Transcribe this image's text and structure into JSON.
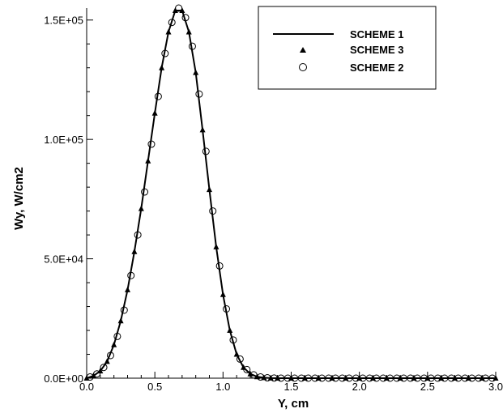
{
  "chart_data": {
    "type": "line",
    "xlabel": "Y, cm",
    "ylabel": "Wy, W/cm2",
    "xlim": [
      0,
      3.0
    ],
    "ylim": [
      0,
      155000
    ],
    "x_ticks": [
      0,
      0.5,
      1.0,
      1.5,
      2.0,
      2.5,
      3.0
    ],
    "x_tick_labels": [
      "0.0",
      "0.5",
      "1.0",
      "1.5",
      "2.0",
      "2.5",
      "3.0"
    ],
    "y_ticks": [
      0,
      50000,
      100000,
      150000
    ],
    "y_tick_labels": [
      "0.0E+00",
      "5.0E+04",
      "1.0E+05",
      "1.5E+05"
    ],
    "grid": false,
    "legend_position": "top-right",
    "series": [
      {
        "name": "SCHEME 1",
        "style": "line",
        "color": "#000000",
        "x": [
          0.0,
          0.05,
          0.1,
          0.15,
          0.2,
          0.25,
          0.3,
          0.35,
          0.4,
          0.45,
          0.5,
          0.55,
          0.6,
          0.65,
          0.7,
          0.75,
          0.8,
          0.85,
          0.9,
          0.95,
          1.0,
          1.05,
          1.1,
          1.15,
          1.2,
          1.25,
          1.3,
          1.35,
          1.4,
          1.5,
          1.6,
          1.8,
          2.0,
          2.2,
          2.4,
          2.6,
          2.8,
          3.0
        ],
        "y": [
          0,
          1000,
          3000,
          7000,
          14000,
          24000,
          37000,
          53000,
          71000,
          91000,
          111000,
          130000,
          145000,
          154000,
          154000,
          145000,
          128000,
          104000,
          79000,
          55000,
          35000,
          20000,
          10000,
          4500,
          1800,
          600,
          200,
          60,
          20,
          0,
          0,
          0,
          0,
          0,
          0,
          0,
          0,
          0
        ]
      },
      {
        "name": "SCHEME 3",
        "style": "triangle",
        "color": "#000000",
        "x": [
          0.0,
          0.05,
          0.1,
          0.15,
          0.2,
          0.25,
          0.3,
          0.35,
          0.4,
          0.45,
          0.5,
          0.55,
          0.6,
          0.65,
          0.7,
          0.75,
          0.8,
          0.85,
          0.9,
          0.95,
          1.0,
          1.05,
          1.1,
          1.15,
          1.2,
          1.25,
          1.3,
          1.35,
          1.4,
          1.5,
          1.6,
          1.7,
          1.8,
          1.9,
          2.0,
          2.1,
          2.2,
          2.3,
          2.4,
          2.5,
          2.6,
          2.7,
          2.8,
          2.9,
          3.0
        ],
        "y": [
          0,
          1000,
          3000,
          7000,
          14000,
          24000,
          37000,
          53000,
          71000,
          91000,
          111000,
          130000,
          145000,
          154000,
          154000,
          145000,
          128000,
          104000,
          79000,
          55000,
          35000,
          20000,
          10000,
          4500,
          1800,
          600,
          200,
          60,
          20,
          0,
          0,
          0,
          0,
          0,
          0,
          0,
          0,
          0,
          0,
          0,
          0,
          0,
          0,
          0,
          0
        ]
      },
      {
        "name": "SCHEME 2",
        "style": "open-circle",
        "color": "#000000",
        "x": [
          0.025,
          0.075,
          0.125,
          0.175,
          0.225,
          0.275,
          0.325,
          0.375,
          0.425,
          0.475,
          0.525,
          0.575,
          0.625,
          0.675,
          0.725,
          0.775,
          0.825,
          0.875,
          0.925,
          0.975,
          1.025,
          1.075,
          1.125,
          1.175,
          1.225,
          1.275,
          1.325,
          1.375,
          1.425,
          1.475,
          1.525,
          1.575,
          1.625,
          1.675,
          1.725,
          1.775,
          1.825,
          1.875,
          1.925,
          1.975,
          2.025,
          2.075,
          2.125,
          2.175,
          2.225,
          2.275,
          2.325,
          2.375,
          2.425,
          2.475,
          2.525,
          2.575,
          2.625,
          2.675,
          2.725,
          2.775,
          2.825,
          2.875,
          2.925,
          2.975
        ],
        "y": [
          500,
          1800,
          4500,
          9500,
          17500,
          28500,
          43000,
          60000,
          78000,
          98000,
          118000,
          136000,
          149000,
          155000,
          151000,
          139000,
          119000,
          95000,
          70000,
          47000,
          29000,
          16000,
          8000,
          3600,
          1400,
          500,
          150,
          50,
          20,
          0,
          0,
          0,
          0,
          0,
          0,
          0,
          0,
          0,
          0,
          0,
          0,
          0,
          0,
          0,
          0,
          0,
          0,
          0,
          0,
          0,
          0,
          0,
          0,
          0,
          0,
          0,
          0,
          0,
          0,
          0
        ]
      }
    ]
  }
}
